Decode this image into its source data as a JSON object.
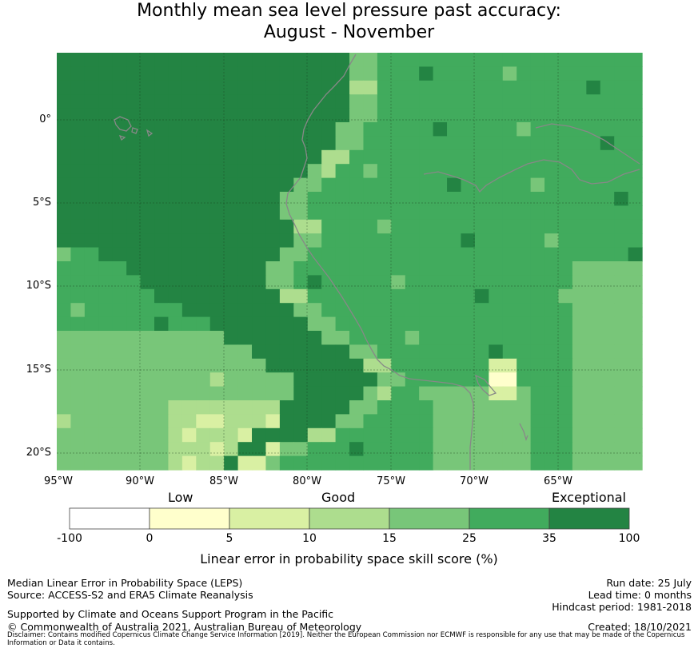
{
  "title": {
    "line1": "Monthly mean sea level pressure past accuracy:",
    "line2": "August - November"
  },
  "map": {
    "lat_labels": [
      "0°",
      "5°S",
      "10°S",
      "15°S",
      "20°S"
    ],
    "lon_labels": [
      "95°W",
      "90°W",
      "85°W",
      "80°W",
      "75°W",
      "70°W",
      "65°W"
    ]
  },
  "colorbar": {
    "categories": {
      "low": "Low",
      "good": "Good",
      "exceptional": "Exceptional"
    },
    "ticks": [
      "-100",
      "0",
      "5",
      "10",
      "15",
      "25",
      "35",
      "100"
    ],
    "colors": [
      "#ffffff",
      "#ffffcc",
      "#d9f0a3",
      "#addd8e",
      "#78c679",
      "#41ab5d",
      "#238443"
    ],
    "label": "Linear error in probability space skill score (%)"
  },
  "footer": {
    "left1": "Median Linear Error in Probability Space (LEPS)",
    "left2": "Source: ACCESS-S2 and ERA5 Climate Reanalysis",
    "left3": "Supported by Climate and Oceans Support Program in the Pacific",
    "left4": "© Commonwealth of Australia 2021, Australian Bureau of Meteorology",
    "right1": "Run date: 25 July",
    "right2": "Lead time: 0 months",
    "right3": "Hindcast period: 1981-2018",
    "right4": "Created: 18/10/2021",
    "disclaimer": "Disclaimer: Contains modified Copernicus Climate Change Service Information [2019]. Neither the European Commission nor ECMWF is responsible for any use that may be made of the Copernicus Information or Data it contains."
  }
}
